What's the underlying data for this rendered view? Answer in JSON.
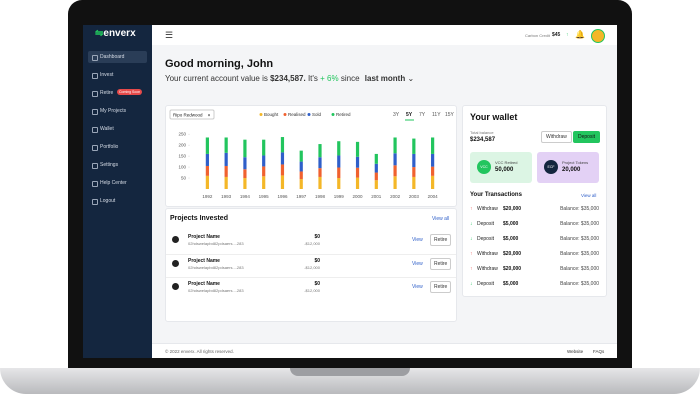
{
  "sidebar": {
    "logo": "enverx",
    "nav": [
      "Dashboard",
      "Invest",
      "Retire",
      "My Projects",
      "Wallet",
      "Portfolio",
      "Settings",
      "Help Center",
      "Logout"
    ],
    "badge": "Coming Soon"
  },
  "header": {
    "carbon_credit_label": "Carbon Credit",
    "carbon_credit_value": "$45",
    "trend": "↑"
  },
  "greeting": "Good morning, John",
  "account": {
    "prefix": "Your current account value is",
    "value": "$234,587.",
    "middle": "It's",
    "change": "+ 6%",
    "since": "since",
    "period": "last month"
  },
  "chart_data": {
    "type": "bar",
    "stacked": true,
    "dropdown": "Ripo Redwood",
    "ranges": [
      "3Y",
      "5Y",
      "7Y",
      "11Y",
      "15Y"
    ],
    "active_range": 1,
    "categories": [
      "1992",
      "1993",
      "1994",
      "1995",
      "1996",
      "1997",
      "1998",
      "1999",
      "2000",
      "2001",
      "2002",
      "2003",
      "2004"
    ],
    "series": [
      {
        "name": "Bought",
        "color": "#f4b728",
        "values": [
          60,
          55,
          50,
          58,
          62,
          45,
          55,
          50,
          52,
          40,
          58,
          55,
          60
        ]
      },
      {
        "name": "Realised",
        "color": "#f0612f",
        "values": [
          45,
          50,
          40,
          45,
          50,
          35,
          40,
          48,
          45,
          35,
          50,
          45,
          42
        ]
      },
      {
        "name": "Sold",
        "color": "#2f5fc9",
        "values": [
          55,
          60,
          55,
          50,
          55,
          45,
          50,
          55,
          50,
          40,
          55,
          60,
          58
        ]
      },
      {
        "name": "Retired",
        "color": "#22c55e",
        "values": [
          75,
          70,
          80,
          72,
          70,
          50,
          60,
          65,
          68,
          45,
          72,
          70,
          75
        ]
      }
    ],
    "ylim": [
      0,
      260
    ],
    "yticks": [
      250,
      200,
      150,
      100,
      50
    ]
  },
  "projects": {
    "title": "Projects Invested",
    "view_all": "View all",
    "rows": [
      {
        "name": "Project Name",
        "id": "02hdswelapbd82pdsaers....283",
        "amount": "$0",
        "change": "-$12,000",
        "view": "View",
        "retire": "Retire"
      },
      {
        "name": "Project Name",
        "id": "02hdswelapbd82pdsaers....283",
        "amount": "$0",
        "change": "-$12,000",
        "view": "View",
        "retire": "Retire"
      },
      {
        "name": "Project Name",
        "id": "02hdswelapbd82pdsaers....283",
        "amount": "$0",
        "change": "-$12,000",
        "view": "View",
        "retire": "Retire"
      }
    ]
  },
  "wallet": {
    "title": "Your wallet",
    "balance_label": "Total balance",
    "balance": "$234,587",
    "withdraw": "Withdraw",
    "deposit": "Deposit",
    "cards": [
      {
        "icon": "VCC",
        "label": "VCC Retired",
        "value": "50,000"
      },
      {
        "icon": "ECF",
        "label": "Project Tokens",
        "value": "20,000"
      }
    ],
    "transactions_title": "Your Transactions",
    "view_all": "View all",
    "transactions": [
      {
        "type": "Withdraw",
        "amount": "$20,000",
        "balance": "Balance: $35,000"
      },
      {
        "type": "Deposit",
        "amount": "$5,000",
        "balance": "Balance: $35,000"
      },
      {
        "type": "Deposit",
        "amount": "$5,000",
        "balance": "Balance: $35,000"
      },
      {
        "type": "Withdraw",
        "amount": "$20,000",
        "balance": "Balance: $35,000"
      },
      {
        "type": "Withdraw",
        "amount": "$20,000",
        "balance": "Balance: $35,000"
      },
      {
        "type": "Deposit",
        "amount": "$5,000",
        "balance": "Balance: $35,000"
      }
    ]
  },
  "footer": {
    "copyright": "© 2022 enverx. All rights reserved.",
    "website": "Website",
    "faqs": "FAQs"
  }
}
